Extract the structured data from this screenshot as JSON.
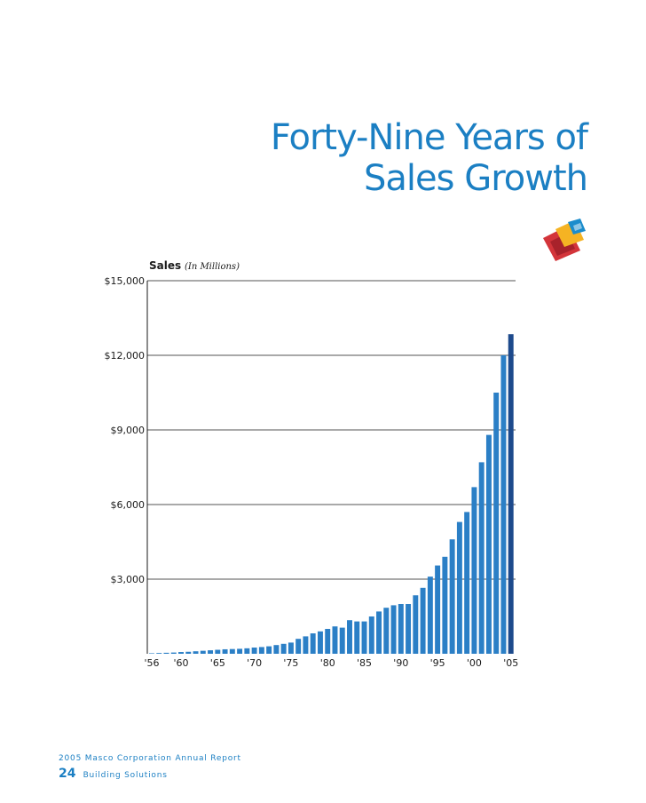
{
  "headline": {
    "line1": "Forty-Nine Years of",
    "line2": "Sales Growth"
  },
  "colors": {
    "accent": "#1b7fc3",
    "bar": "#2b7fc6",
    "bar_last": "#1d4a8c",
    "logo_red": "#d3343a",
    "logo_yellow": "#f5b323",
    "logo_blue": "#1b8ccc",
    "logo_darkred": "#a8222b"
  },
  "logo": {
    "icon": "masco-logo-icon"
  },
  "chart_data": {
    "type": "bar",
    "title": "Sales",
    "title_note": "(In Millions)",
    "ylim": [
      0,
      15000
    ],
    "yticks": [
      3000,
      6000,
      9000,
      12000,
      15000
    ],
    "ytick_labels": [
      "$3,000",
      "$6,000",
      "$9,000",
      "$12,000",
      "$15,000"
    ],
    "grid": true,
    "categories": [
      "1956",
      "1957",
      "1958",
      "1959",
      "1960",
      "1961",
      "1962",
      "1963",
      "1964",
      "1965",
      "1966",
      "1967",
      "1968",
      "1969",
      "1970",
      "1971",
      "1972",
      "1973",
      "1974",
      "1975",
      "1976",
      "1977",
      "1978",
      "1979",
      "1980",
      "1981",
      "1982",
      "1983",
      "1984",
      "1985",
      "1986",
      "1987",
      "1988",
      "1989",
      "1990",
      "1991",
      "1992",
      "1993",
      "1994",
      "1995",
      "1996",
      "1997",
      "1998",
      "1999",
      "2000",
      "2001",
      "2002",
      "2003",
      "2004",
      "2005"
    ],
    "xtick_labels": [
      {
        "category": "1956",
        "label": "'56"
      },
      {
        "category": "1960",
        "label": "'60"
      },
      {
        "category": "1965",
        "label": "'65"
      },
      {
        "category": "1970",
        "label": "'70"
      },
      {
        "category": "1975",
        "label": "'75"
      },
      {
        "category": "1980",
        "label": "'80"
      },
      {
        "category": "1985",
        "label": "'85"
      },
      {
        "category": "1990",
        "label": "'90"
      },
      {
        "category": "1995",
        "label": "'95"
      },
      {
        "category": "2000",
        "label": "'00"
      },
      {
        "category": "2005",
        "label": "'05"
      }
    ],
    "values": [
      20,
      30,
      40,
      50,
      70,
      80,
      100,
      120,
      140,
      160,
      180,
      190,
      200,
      220,
      250,
      270,
      300,
      350,
      400,
      450,
      600,
      700,
      820,
      900,
      1000,
      1100,
      1050,
      1350,
      1300,
      1300,
      1500,
      1700,
      1850,
      1950,
      2000,
      2000,
      2350,
      2650,
      3100,
      3550,
      3900,
      4600,
      5300,
      5700,
      6700,
      7700,
      8800,
      10500,
      12000,
      12850
    ]
  },
  "footer": {
    "report": "2005 Masco Corporation Annual Report",
    "page": "24",
    "section": "Building Solutions"
  }
}
